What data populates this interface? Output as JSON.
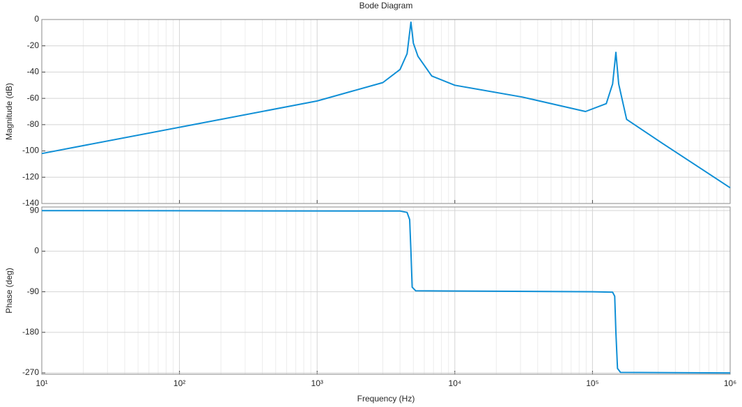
{
  "chart_data": [
    {
      "type": "line",
      "title": "Bode Diagram",
      "ylabel": "Magnitude (dB)",
      "log_x": true,
      "grid": true,
      "minor_grid": true,
      "xlim": [
        10,
        1000000
      ],
      "xticks": [
        10,
        100,
        1000,
        10000,
        100000,
        1000000
      ],
      "ylim": [
        -140,
        0
      ],
      "yticks": [
        0,
        -20,
        -40,
        -60,
        -80,
        -100,
        -120,
        -140
      ],
      "x": [
        10,
        100,
        1000,
        3000,
        4000,
        4500,
        4800,
        5000,
        5400,
        6800,
        10000,
        31000,
        89000,
        126000,
        140000,
        148000,
        155000,
        177000,
        320000,
        1000000
      ],
      "series": [
        {
          "name": "Magnitude",
          "color": "#0f8fd6",
          "values": [
            -102,
            -82,
            -62,
            -48,
            -38,
            -26,
            -2,
            -18,
            -28,
            -43,
            -50,
            -59,
            -70,
            -64,
            -49,
            -25,
            -49,
            -76,
            -94,
            -128
          ]
        }
      ]
    },
    {
      "type": "line",
      "ylabel": "Phase (deg)",
      "xlabel": "Frequency  (Hz)",
      "log_x": true,
      "grid": true,
      "minor_grid": true,
      "xlim": [
        10,
        1000000
      ],
      "xticks": [
        {
          "value": 10,
          "label": "10¹"
        },
        {
          "value": 100,
          "label": "10²"
        },
        {
          "value": 1000,
          "label": "10³"
        },
        {
          "value": 10000,
          "label": "10⁴"
        },
        {
          "value": 100000,
          "label": "10⁵"
        },
        {
          "value": 1000000,
          "label": "10⁶"
        }
      ],
      "ylim": [
        -273,
        98
      ],
      "yticks": [
        90,
        0,
        -90,
        -180,
        -270
      ],
      "x": [
        10,
        4000,
        4500,
        4700,
        4800,
        4900,
        5200,
        100000,
        140000,
        145000,
        148000,
        152000,
        160000,
        1000000
      ],
      "series": [
        {
          "name": "Phase",
          "color": "#0f8fd6",
          "values": [
            90,
            89,
            86,
            70,
            0,
            -80,
            -88,
            -90,
            -91,
            -100,
            -180,
            -260,
            -269,
            -270
          ]
        }
      ]
    }
  ]
}
